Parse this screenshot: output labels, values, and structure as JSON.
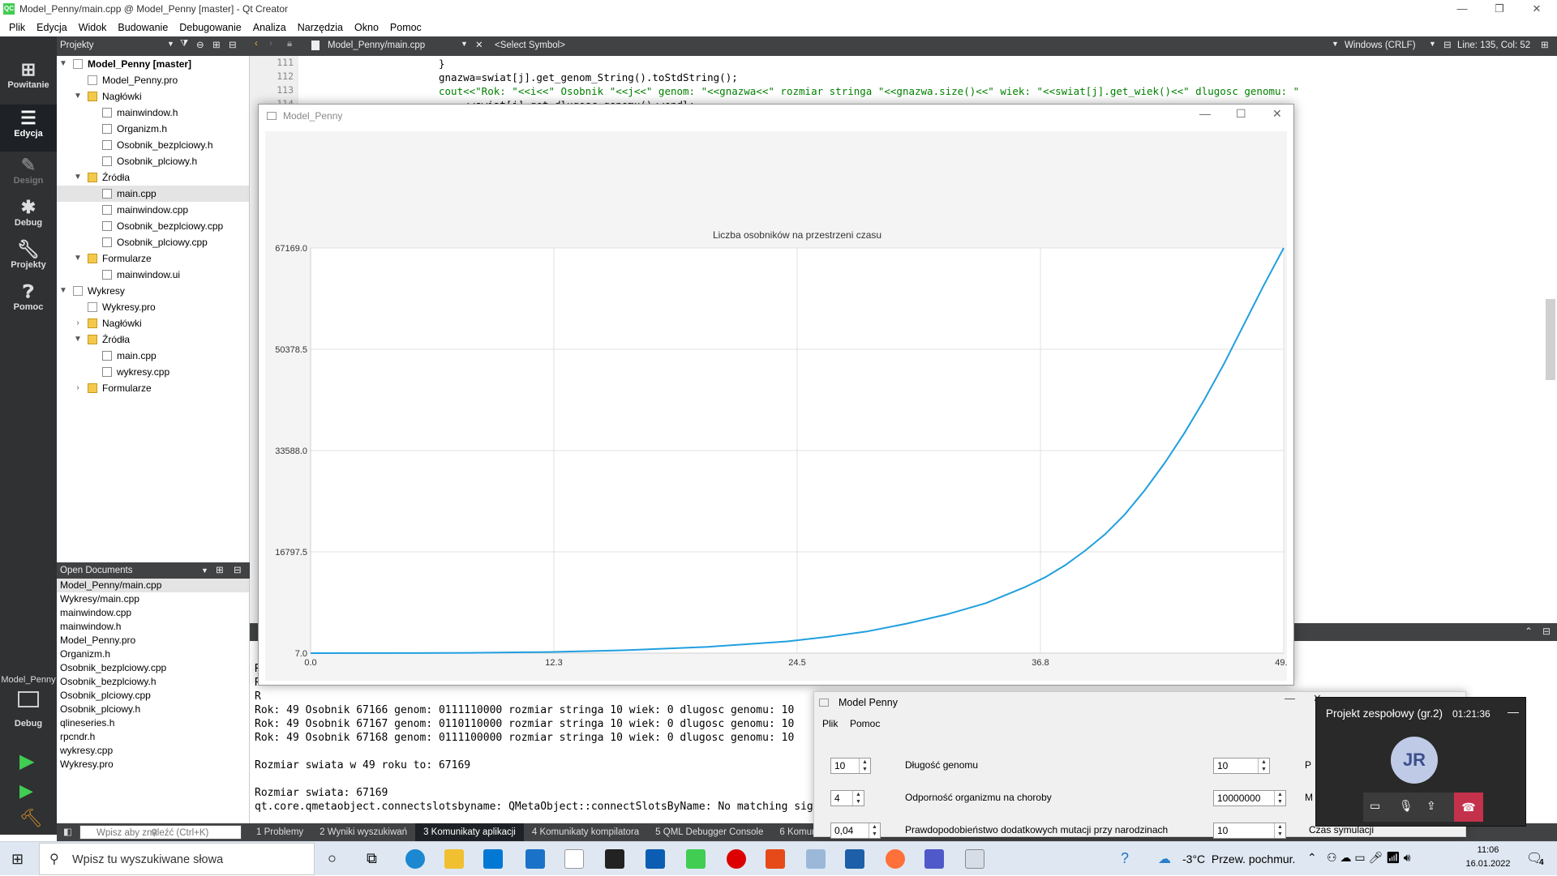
{
  "window_title": "Model_Penny/main.cpp @ Model_Penny [master] - Qt Creator",
  "menu": [
    "Plik",
    "Edycja",
    "Widok",
    "Budowanie",
    "Debugowanie",
    "Analiza",
    "Narzędzia",
    "Okno",
    "Pomoc"
  ],
  "toolbar": {
    "panel_title": "Projekty",
    "file_tab": "Model_Penny/main.cpp",
    "symbol": "<Select Symbol>",
    "line_ending": "Windows (CRLF)",
    "position": "Line: 135, Col: 52"
  },
  "modes": [
    {
      "label": "Powitanie",
      "icon": "grid-icon"
    },
    {
      "label": "Edycja",
      "icon": "edit-icon"
    },
    {
      "label": "Design",
      "icon": "pen-icon"
    },
    {
      "label": "Debug",
      "icon": "bug-icon"
    },
    {
      "label": "Projekty",
      "icon": "wrench-icon"
    },
    {
      "label": "Pomoc",
      "icon": "help-icon"
    }
  ],
  "kit": {
    "project": "Model_Penny",
    "mode": "Debug"
  },
  "tree": [
    {
      "label": "Model_Penny [master]",
      "type": "pro-root",
      "level": 0,
      "bold": true,
      "arrow": "▼"
    },
    {
      "label": "Model_Penny.pro",
      "type": "pro",
      "level": 1
    },
    {
      "label": "Nagłówki",
      "type": "folder",
      "level": 1,
      "arrow": "▼"
    },
    {
      "label": "mainwindow.h",
      "type": "file",
      "level": 2
    },
    {
      "label": "Organizm.h",
      "type": "file",
      "level": 2
    },
    {
      "label": "Osobnik_bezplciowy.h",
      "type": "file",
      "level": 2
    },
    {
      "label": "Osobnik_plciowy.h",
      "type": "file",
      "level": 2
    },
    {
      "label": "Źródła",
      "type": "folder",
      "level": 1,
      "arrow": "▼"
    },
    {
      "label": "main.cpp",
      "type": "file",
      "level": 2,
      "selected": true
    },
    {
      "label": "mainwindow.cpp",
      "type": "file",
      "level": 2
    },
    {
      "label": "Osobnik_bezplciowy.cpp",
      "type": "file",
      "level": 2
    },
    {
      "label": "Osobnik_plciowy.cpp",
      "type": "file",
      "level": 2
    },
    {
      "label": "Formularze",
      "type": "folder",
      "level": 1,
      "arrow": "▼"
    },
    {
      "label": "mainwindow.ui",
      "type": "file",
      "level": 2
    },
    {
      "label": "Wykresy",
      "type": "pro-root",
      "level": 0,
      "arrow": "▼"
    },
    {
      "label": "Wykresy.pro",
      "type": "pro",
      "level": 1
    },
    {
      "label": "Nagłówki",
      "type": "folder",
      "level": 1,
      "arrow": "›"
    },
    {
      "label": "Źródła",
      "type": "folder",
      "level": 1,
      "arrow": "▼"
    },
    {
      "label": "main.cpp",
      "type": "file",
      "level": 2
    },
    {
      "label": "wykresy.cpp",
      "type": "file",
      "level": 2
    },
    {
      "label": "Formularze",
      "type": "folder",
      "level": 1,
      "arrow": "›"
    }
  ],
  "open_documents": {
    "title": "Open Documents",
    "items": [
      "Model_Penny/main.cpp",
      "Wykresy/main.cpp",
      "mainwindow.cpp",
      "mainwindow.h",
      "Model_Penny.pro",
      "Organizm.h",
      "Osobnik_bezplciowy.cpp",
      "Osobnik_bezplciowy.h",
      "Osobnik_plciowy.cpp",
      "Osobnik_plciowy.h",
      "qlineseries.h",
      "rpcndr.h",
      "wykresy.cpp",
      "Wykresy.pro"
    ]
  },
  "editor": {
    "line_numbers": [
      "111",
      "112",
      "113",
      "114"
    ],
    "lines": [
      "}",
      "gnazwa=swiat[j].get_genom_String().toStdString();",
      "cout<<\"Rok: \"<<i<<\" Osobnik \"<<j<<\" genom: \"<<gnazwa<<\" rozmiar stringa \"<<gnazwa.size()<<\" wiek: \"<<swiat[j].get_wiek()<<\" dlugosc genomu: \"",
      "    <<swiat[j].get_dlugosc_genomu()<<endl;"
    ]
  },
  "output": {
    "lines": [
      "R",
      "R",
      "R",
      "Rok: 49 Osobnik 67166 genom: 0111110000 rozmiar stringa 10 wiek: 0 dlugosc genomu: 10",
      "Rok: 49 Osobnik 67167 genom: 0110110000 rozmiar stringa 10 wiek: 0 dlugosc genomu: 10",
      "Rok: 49 Osobnik 67168 genom: 0111100000 rozmiar stringa 10 wiek: 0 dlugosc genomu: 10",
      "",
      "Rozmiar swiata w 49 roku to: 67169",
      "",
      "Rozmiar swiata: 67169",
      "qt.core.qmetaobject.connectslotsbyname: QMetaObject::connectSlotsByName: No matching signal for on_pushButton_clicked()"
    ]
  },
  "bottom_tabs": [
    "1 Problemy",
    "2 Wyniki wyszukiwań",
    "3 Komunikaty aplikacji",
    "4 Komunikaty kompilatora",
    "5 QML Debugger Console",
    "6 Komunikaty o"
  ],
  "locator_placeholder": "Wpisz aby znaleźć (Ctrl+K)",
  "chart_window": {
    "title": "Model_Penny"
  },
  "chart_data": {
    "type": "line",
    "title": "Liczba osobników na przestrzeni czasu",
    "xlabel": "",
    "ylabel": "",
    "x_ticks": [
      "0.0",
      "12.3",
      "24.5",
      "36.8",
      "49.0"
    ],
    "y_ticks": [
      "7.0",
      "16797.5",
      "33588.0",
      "50378.5",
      "67169.0"
    ],
    "xlim": [
      0,
      49
    ],
    "ylim": [
      7,
      67169
    ],
    "grid": true,
    "color": "#209fdf",
    "series": [
      {
        "x": [
          0,
          4,
          8,
          12,
          16,
          20,
          24,
          26,
          28,
          30,
          32,
          34,
          36,
          37,
          38,
          39,
          40,
          41,
          42,
          43,
          44,
          45,
          46,
          47,
          48,
          49
        ],
        "values": [
          7,
          20,
          60,
          200,
          500,
          1050,
          1950,
          2700,
          3600,
          4900,
          6400,
          8300,
          11000,
          12600,
          14600,
          17000,
          19700,
          23000,
          27000,
          31500,
          36500,
          42000,
          48000,
          54500,
          61000,
          67169
        ]
      }
    ]
  },
  "penny_window": {
    "title": "Model Penny",
    "menu": [
      "Plik",
      "Pomoc"
    ],
    "rows": [
      {
        "left_value": "10",
        "label": "Długość genomu",
        "right_value": "10"
      },
      {
        "left_value": "4",
        "label": "Odporność organizmu na choroby",
        "right_value": "10000000"
      },
      {
        "left_value": "0,04",
        "label": "Prawdopodobieństwo dodatkowych mutacji przy narodzinach",
        "right_value": "10"
      }
    ],
    "clipped_labels": [
      "P",
      "M",
      "Czas symulacji"
    ]
  },
  "teams_popup": {
    "title": "Projekt zespołowy (gr.2)",
    "timer": "01:21:36",
    "initials": "JR"
  },
  "taskbar": {
    "search_placeholder": "Wpisz tu wyszukiwane słowa",
    "weather": "-3°C  Przew. pochmur.",
    "time": "11:06",
    "date": "16.01.2022",
    "notifications": "4"
  },
  "colors": {
    "accent": "#41cd52",
    "mode_bar": "#2f3133",
    "toolbar": "#404244",
    "chart_line": "#209fdf"
  }
}
